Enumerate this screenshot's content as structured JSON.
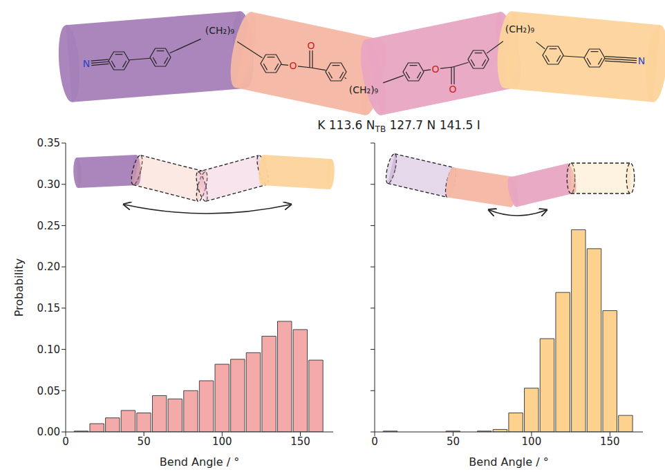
{
  "molecule": {
    "colors": [
      "#a57fb8",
      "#f4b7a3",
      "#e8a5c2",
      "#fcd39b"
    ],
    "nitrile": "N",
    "spacer": "(CH₂)₉",
    "oxygen": "O"
  },
  "phase_sequence": {
    "phases": [
      {
        "label": "K"
      },
      {
        "label": "N",
        "subscript": "TB"
      },
      {
        "label": "N"
      },
      {
        "label": "I"
      }
    ],
    "transitions": [
      113.6,
      127.7,
      141.5
    ]
  },
  "chart_data": [
    {
      "type": "histogram",
      "xlabel": "Bend Angle / °",
      "ylabel": "Probability",
      "bins": [
        5,
        15,
        25,
        35,
        45,
        55,
        65,
        75,
        85,
        95,
        105,
        115,
        125,
        135,
        145,
        155,
        165
      ],
      "values": [
        0.001,
        0.01,
        0.017,
        0.026,
        0.023,
        0.044,
        0.04,
        0.05,
        0.062,
        0.082,
        0.088,
        0.096,
        0.116,
        0.134,
        0.124,
        0.087
      ],
      "color": "#f4aaa9",
      "xlim": [
        0,
        171
      ],
      "ylim": [
        0,
        0.35
      ],
      "xticks": [
        0,
        50,
        100,
        150
      ],
      "yticks": [
        {
          "value": 0,
          "label": "0.00"
        },
        {
          "value": 0.05,
          "label": "0.05"
        },
        {
          "value": 0.1,
          "label": "0.10"
        },
        {
          "value": 0.15,
          "label": "0.15"
        },
        {
          "value": 0.2,
          "label": "0.20"
        },
        {
          "value": 0.25,
          "label": "0.25"
        },
        {
          "value": 0.3,
          "label": "0.30"
        },
        {
          "value": 0.35,
          "label": "0.35"
        }
      ]
    },
    {
      "type": "histogram",
      "xlabel": "Bend Angle / °",
      "bins": [
        5,
        15,
        25,
        35,
        45,
        55,
        65,
        75,
        85,
        95,
        105,
        115,
        125,
        135,
        145,
        155,
        165
      ],
      "values": [
        0.001,
        0,
        0,
        0,
        0.001,
        0,
        0.001,
        0.003,
        0.023,
        0.053,
        0.113,
        0.169,
        0.245,
        0.222,
        0.147,
        0.02
      ],
      "color": "#fdd28f",
      "xlim": [
        0,
        171
      ],
      "ylim": [
        0,
        0.35
      ],
      "xticks": [
        0,
        50,
        100,
        150
      ],
      "yticks": [
        0,
        0.05,
        0.1,
        0.15,
        0.2,
        0.25,
        0.3,
        0.35
      ],
      "tick_labels": "x"
    }
  ]
}
